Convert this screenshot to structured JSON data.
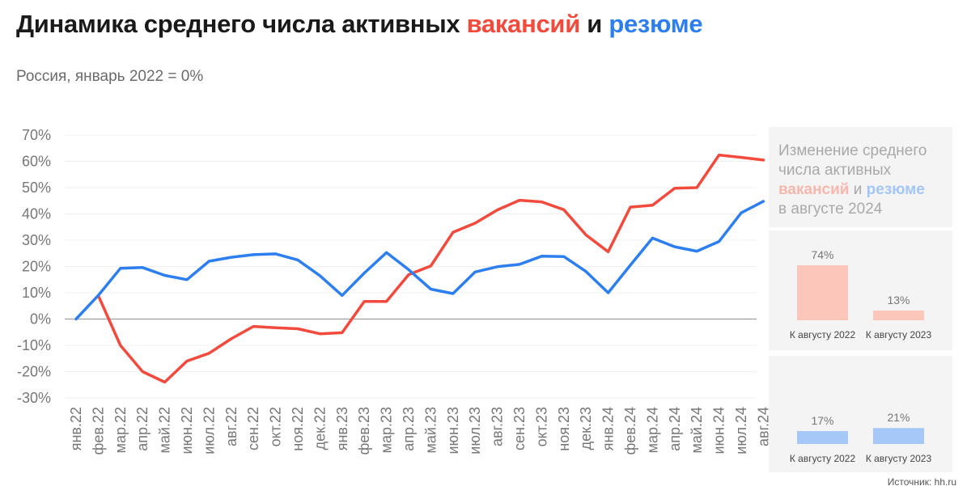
{
  "header": {
    "title_prefix": "Динамика среднего числа активных ",
    "title_vac": "вакансий",
    "title_and": " и ",
    "title_res": "резюме",
    "subtitle": "Россия, январь 2022 = 0%"
  },
  "panel": {
    "line1": "Изменение среднего",
    "line2": "числа активных",
    "vac": "вакансий",
    "and": " и ",
    "res": "резюме",
    "line4": "в августе 2024"
  },
  "source": "Источник: hh.ru",
  "colors": {
    "vacancies": "#f24a3c",
    "resumes": "#2d7ff0",
    "bar_vacancies": "#fcc6bb",
    "bar_resumes": "#a6c8f8"
  },
  "chart_data": [
    {
      "type": "line",
      "categories": [
        "янв.22",
        "фев.22",
        "мар.22",
        "апр.22",
        "май.22",
        "июн.22",
        "июл.22",
        "авг.22",
        "сен.22",
        "окт.22",
        "ноя.22",
        "дек.22",
        "янв.23",
        "фев.23",
        "мар.23",
        "апр.23",
        "май.23",
        "июн.23",
        "июл.23",
        "авг.23",
        "сен.23",
        "окт.23",
        "ноя.23",
        "дек.23",
        "янв.24",
        "фев.24",
        "мар.24",
        "апр.24",
        "май.24",
        "июн.24",
        "июл.24",
        "авг.24"
      ],
      "y_ticks": [
        "70%",
        "60%",
        "50%",
        "40%",
        "30%",
        "20%",
        "10%",
        "0%",
        "-10%",
        "-20%",
        "-30%"
      ],
      "ylim": [
        -30,
        70
      ],
      "grid": true,
      "series": [
        {
          "key": "vacancies",
          "values": [
            null,
            9,
            -10,
            -20,
            -24,
            -16,
            -13,
            -7.5,
            -2.8,
            -3.3,
            -3.7,
            -5.6,
            -5.2,
            6.7,
            6.7,
            16.9,
            20.2,
            33,
            36.5,
            41.5,
            45.2,
            44.6,
            41.6,
            32,
            25.6,
            42.6,
            43.3,
            49.8,
            50,
            62.4,
            61.5,
            60.5
          ]
        },
        {
          "key": "resumes",
          "values": [
            0,
            9,
            19.3,
            19.6,
            16.6,
            15,
            22,
            23.5,
            24.5,
            24.8,
            22.5,
            16.5,
            9,
            17.5,
            25.3,
            18.8,
            11.4,
            9.7,
            17.9,
            19.9,
            20.8,
            23.9,
            23.8,
            18.1,
            10,
            20.5,
            30.8,
            27.5,
            25.8,
            29.5,
            40.4,
            44.8
          ]
        }
      ]
    },
    {
      "type": "bar",
      "categories": [
        "К августу 2022",
        "К августу 2023"
      ],
      "values": [
        74,
        13
      ],
      "labels": [
        "74%",
        "13%"
      ]
    },
    {
      "type": "bar",
      "categories": [
        "К августу 2022",
        "К августу 2023"
      ],
      "values": [
        17,
        21
      ],
      "labels": [
        "17%",
        "21%"
      ]
    }
  ]
}
